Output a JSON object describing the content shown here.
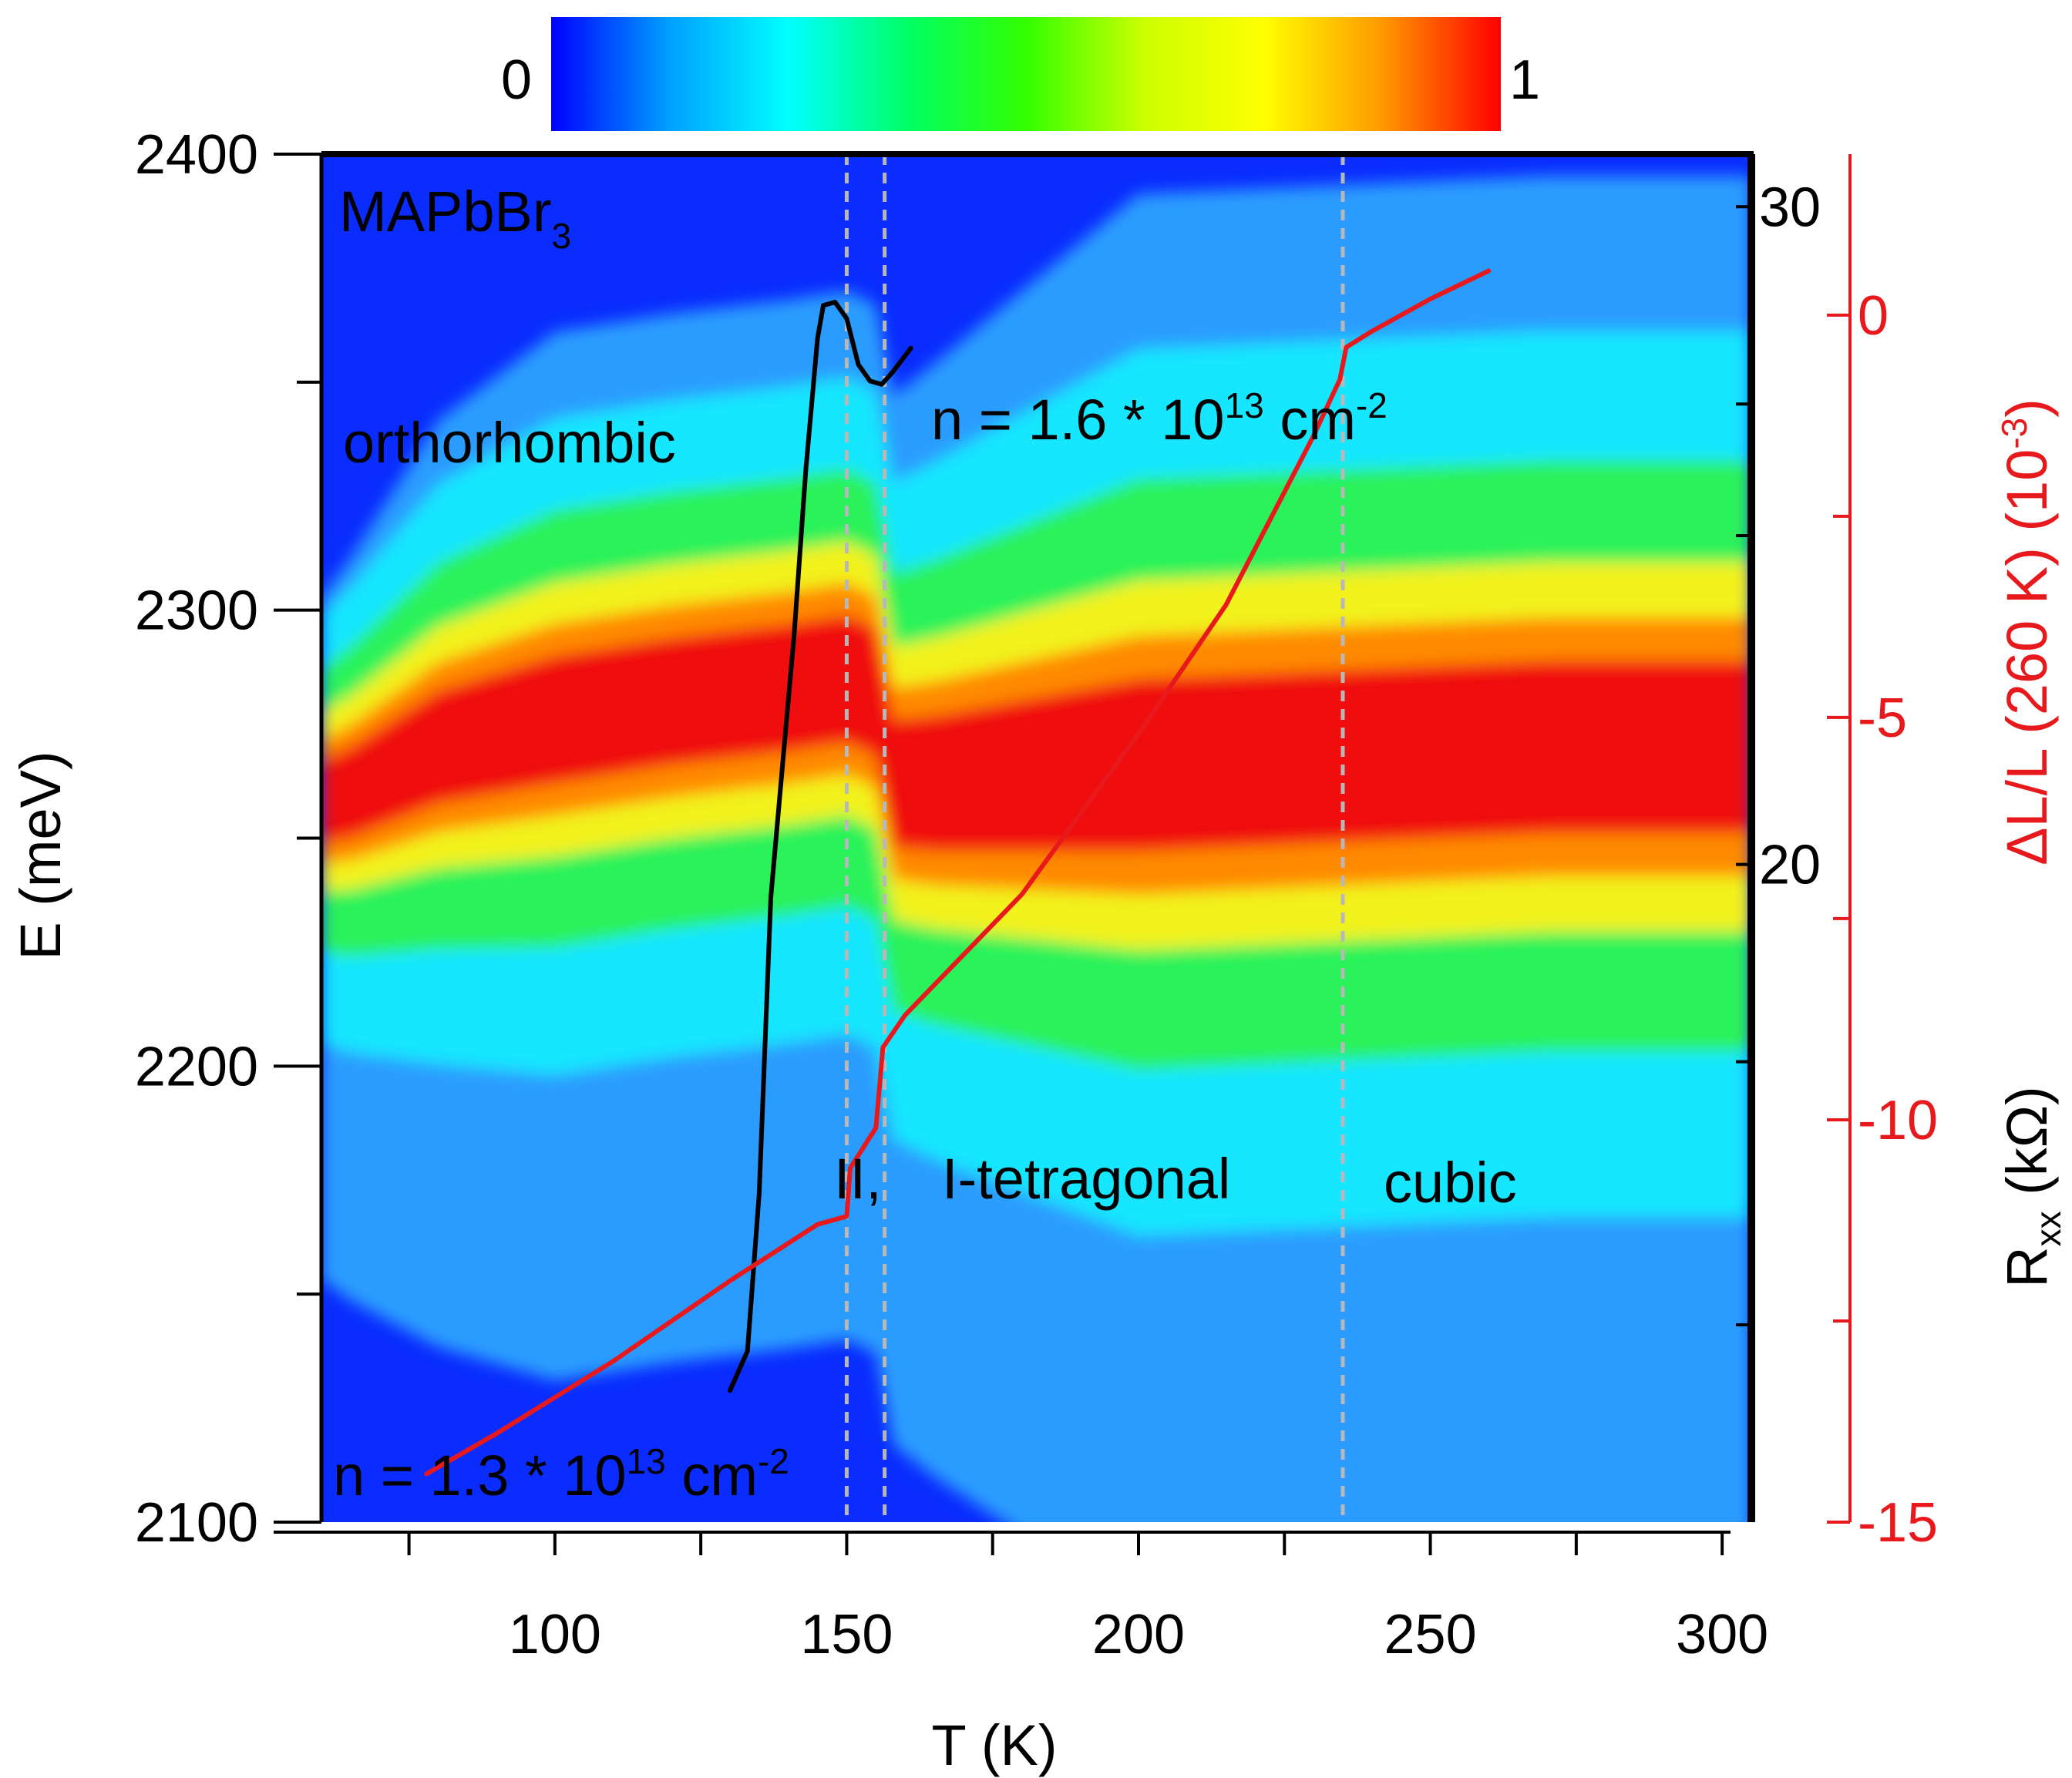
{
  "chart_data": {
    "type": "heatmap",
    "title": "",
    "colorbar": {
      "min_label": "0",
      "max_label": "1",
      "colormap": [
        "#0000ff",
        "#00a0ff",
        "#00ffff",
        "#00ff66",
        "#33ff00",
        "#ccff00",
        "#ffff00",
        "#ff9900",
        "#ff0000"
      ]
    },
    "x_axis": {
      "label": "T (K)",
      "range": [
        60,
        305
      ],
      "ticks": [
        100,
        150,
        200,
        250,
        300
      ],
      "minor_ticks": [
        75,
        125,
        175,
        225,
        275
      ]
    },
    "y_axis_left": {
      "label": "E (meV)",
      "range": [
        2100,
        2400
      ],
      "ticks": [
        2100,
        2200,
        2300,
        2400
      ],
      "minor_ticks": [
        2150,
        2250,
        2350
      ]
    },
    "y_axis_right_black": {
      "label_main": "R",
      "label_sub": "xx",
      "label_rest": " (kΩ)",
      "ticks": [
        20,
        30
      ],
      "range": [
        10,
        30.8
      ]
    },
    "y_axis_right_red": {
      "label": "ΔL/L (260 K) (10",
      "label_sup": "-3",
      "label_end": ")",
      "color": "#e8191c",
      "range": [
        -15,
        2
      ],
      "ticks": [
        0,
        -5,
        -10,
        -15
      ],
      "minor_ticks": [
        -2.5,
        -7.5,
        -12.5
      ]
    },
    "heatmap_peak": {
      "T": [
        60,
        65,
        80,
        100,
        120,
        140,
        150,
        155,
        158,
        165,
        200,
        235,
        270,
        305
      ],
      "E_center": [
        2258,
        2260,
        2270,
        2276,
        2280,
        2283,
        2285,
        2282,
        2262,
        2262,
        2266,
        2268,
        2270,
        2270
      ]
    },
    "phase_boundaries_T": [
      150,
      156.5,
      235
    ],
    "series": [
      {
        "name": "",
        "color": "#000000",
        "axis": "R",
        "points": [
          [
            130,
            12
          ],
          [
            133,
            12.6
          ],
          [
            135,
            15
          ],
          [
            137,
            19.5
          ],
          [
            139,
            21.5
          ],
          [
            141,
            23.5
          ],
          [
            143,
            26
          ],
          [
            144,
            27
          ],
          [
            145,
            28
          ],
          [
            146,
            28.5
          ],
          [
            148,
            28.55
          ],
          [
            150,
            28.3
          ],
          [
            152,
            27.6
          ],
          [
            154,
            27.35
          ],
          [
            156,
            27.3
          ],
          [
            158,
            27.5
          ],
          [
            161,
            27.85
          ]
        ]
      },
      {
        "name": "",
        "color": "#e8191c",
        "axis": "dL/L",
        "points": [
          [
            78,
            -14.4
          ],
          [
            90,
            -13.9
          ],
          [
            110,
            -13
          ],
          [
            130,
            -12
          ],
          [
            145,
            -11.3
          ],
          [
            150,
            -11.2
          ],
          [
            150.6,
            -10.6
          ],
          [
            155,
            -10.1
          ],
          [
            156.2,
            -9.1
          ],
          [
            160,
            -8.7
          ],
          [
            180,
            -7.2
          ],
          [
            200,
            -5.2
          ],
          [
            215,
            -3.6
          ],
          [
            230,
            -1.5
          ],
          [
            234.5,
            -0.8
          ],
          [
            235.6,
            -0.4
          ],
          [
            240,
            -0.2
          ],
          [
            250,
            0.2
          ],
          [
            260,
            0.55
          ]
        ]
      }
    ],
    "annotations": {
      "material": "MAPbBr",
      "material_sub": "3",
      "orthorhombic": "orthorhombic",
      "n_top": "n = 1.6 * 10",
      "n_top_exp": "13",
      "n_top_unit": " cm",
      "n_top_unit_exp": "-2",
      "n_bottom": "n = 1.3 * 10",
      "n_bottom_exp": "13",
      "n_bottom_unit": " cm",
      "n_bottom_unit_exp": "-2",
      "phase_II": "II,",
      "phase_I_tetragonal": "I-tetragonal",
      "cubic": "cubic"
    }
  }
}
